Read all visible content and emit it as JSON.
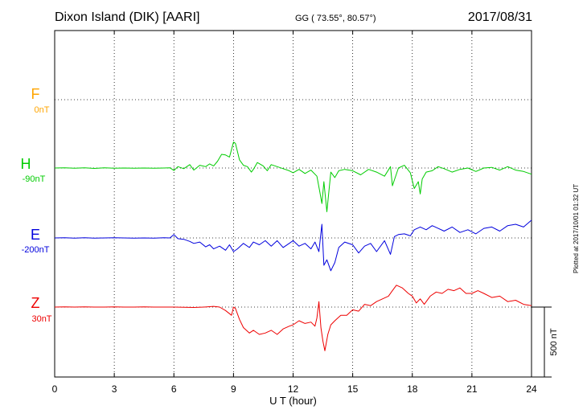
{
  "header": {
    "station": "Dixon Island (DIK)  [AARI]",
    "coords": "GG ( 73.55°,  80.57°)",
    "date": "2017/08/31"
  },
  "components": {
    "F": {
      "name": "F",
      "baseline": "0nT",
      "color": "#FFA500"
    },
    "H": {
      "name": "H",
      "baseline": "-90nT",
      "color": "#00CC00"
    },
    "E": {
      "name": "E",
      "baseline": "-200nT",
      "color": "#0000DD"
    },
    "Z": {
      "name": "Z",
      "baseline": "30nT",
      "color": "#EE0000"
    }
  },
  "plotted_note": "Plotted at 2017/10/01 01:32 UT",
  "chart_data": {
    "type": "line",
    "xlabel": "U T (hour)",
    "xlim": [
      0,
      24
    ],
    "x_ticks": [
      "0",
      "3",
      "6",
      "9",
      "12",
      "15",
      "18",
      "21",
      "24"
    ],
    "grid": true,
    "scale_bar": "500 nT",
    "series": [
      {
        "name": "H",
        "baseline": "-90nT",
        "color": "#00CC00",
        "x": [
          0,
          0.5,
          1,
          1.5,
          2,
          2.5,
          3,
          3.5,
          4,
          4.5,
          5,
          5.5,
          5.8,
          6,
          6.2,
          6.5,
          6.8,
          7,
          7.3,
          7.6,
          7.8,
          8,
          8.2,
          8.4,
          8.6,
          8.8,
          9,
          9.1,
          9.3,
          9.5,
          9.7,
          9.9,
          10,
          10.2,
          10.5,
          10.7,
          10.9,
          11.2,
          11.5,
          11.8,
          12,
          12.3,
          12.6,
          12.9,
          13.2,
          13.35,
          13.45,
          13.55,
          13.7,
          13.9,
          14.1,
          14.3,
          14.6,
          15,
          15.4,
          15.8,
          16.2,
          16.6,
          16.9,
          17,
          17.3,
          17.6,
          17.9,
          18.1,
          18.3,
          18.4,
          18.5,
          18.7,
          19,
          19.3,
          19.6,
          20,
          20.4,
          20.8,
          21.2,
          21.6,
          22,
          22.4,
          22.8,
          23.2,
          23.6,
          24
        ],
        "y": [
          0,
          2,
          -2,
          2,
          -3,
          2,
          -2,
          0,
          -2,
          0,
          -2,
          0,
          2,
          -18,
          10,
          -5,
          25,
          -15,
          20,
          10,
          30,
          15,
          50,
          100,
          95,
          80,
          190,
          180,
          60,
          20,
          10,
          -30,
          -10,
          40,
          15,
          -20,
          25,
          10,
          -5,
          -20,
          -35,
          -10,
          -40,
          -15,
          -60,
          -180,
          -260,
          -100,
          -320,
          -30,
          -70,
          -20,
          -10,
          -20,
          -50,
          -10,
          -30,
          -60,
          10,
          -130,
          0,
          20,
          -35,
          -150,
          -100,
          -190,
          -80,
          -30,
          -20,
          10,
          -5,
          -30,
          -10,
          0,
          -25,
          0,
          5,
          -15,
          10,
          -15,
          -25,
          -45
        ]
      },
      {
        "name": "E",
        "baseline": "-200nT",
        "color": "#0000DD",
        "x": [
          0,
          0.5,
          1,
          1.5,
          2,
          2.5,
          3,
          3.5,
          4,
          4.5,
          5,
          5.5,
          5.8,
          6,
          6.2,
          6.5,
          6.8,
          7,
          7.3,
          7.6,
          7.8,
          8,
          8.3,
          8.6,
          8.8,
          9,
          9.2,
          9.5,
          9.8,
          10,
          10.3,
          10.6,
          10.9,
          11.2,
          11.5,
          11.8,
          12,
          12.3,
          12.6,
          12.9,
          13.1,
          13.3,
          13.45,
          13.55,
          13.7,
          13.9,
          14.1,
          14.3,
          14.6,
          15,
          15.3,
          15.6,
          15.9,
          16.2,
          16.6,
          16.9,
          17.1,
          17.3,
          17.6,
          17.9,
          18.1,
          18.4,
          18.7,
          19,
          19.3,
          19.6,
          20,
          20.4,
          20.8,
          21.2,
          21.6,
          22,
          22.4,
          22.8,
          23.2,
          23.6,
          24
        ],
        "y": [
          0,
          2,
          -2,
          2,
          -2,
          0,
          2,
          0,
          -2,
          0,
          -2,
          2,
          0,
          25,
          -5,
          -10,
          -25,
          -40,
          -30,
          -65,
          -50,
          -80,
          -60,
          -90,
          -50,
          -100,
          -80,
          -40,
          -70,
          -30,
          -50,
          -20,
          -60,
          -20,
          -70,
          -40,
          -20,
          -60,
          -40,
          -80,
          -30,
          -100,
          100,
          -200,
          -160,
          -240,
          -180,
          -70,
          -30,
          -50,
          -110,
          -60,
          -40,
          -100,
          -20,
          -120,
          10,
          25,
          30,
          15,
          60,
          80,
          60,
          90,
          70,
          50,
          80,
          40,
          60,
          30,
          70,
          80,
          50,
          90,
          100,
          80,
          130
        ]
      },
      {
        "name": "Z",
        "baseline": "30nT",
        "color": "#EE0000",
        "x": [
          0,
          0.5,
          1,
          1.5,
          2,
          2.5,
          3,
          3.5,
          4,
          4.5,
          5,
          5.5,
          6,
          6.5,
          7,
          7.5,
          8,
          8.3,
          8.6,
          8.9,
          9,
          9.1,
          9.3,
          9.5,
          9.8,
          10,
          10.3,
          10.6,
          10.9,
          11.2,
          11.5,
          11.8,
          12,
          12.3,
          12.6,
          12.9,
          13.1,
          13.2,
          13.3,
          13.4,
          13.5,
          13.6,
          13.75,
          13.9,
          14.1,
          14.4,
          14.7,
          15,
          15.3,
          15.6,
          15.9,
          16.2,
          16.5,
          16.8,
          17,
          17.2,
          17.5,
          17.8,
          18,
          18.2,
          18.4,
          18.6,
          18.9,
          19.2,
          19.5,
          19.8,
          20.1,
          20.4,
          20.7,
          21,
          21.3,
          21.6,
          22,
          22.4,
          22.8,
          23.2,
          23.6,
          24
        ],
        "y": [
          0,
          1,
          0,
          1,
          0,
          0,
          1,
          0,
          0,
          1,
          0,
          0,
          0,
          -1,
          -3,
          0,
          5,
          0,
          -25,
          -60,
          0,
          -10,
          -90,
          -150,
          -190,
          -170,
          -200,
          -190,
          -170,
          -200,
          -160,
          -140,
          -130,
          -100,
          -120,
          -110,
          -140,
          -80,
          40,
          -150,
          -250,
          -320,
          -200,
          -130,
          -100,
          -60,
          -60,
          -20,
          -30,
          20,
          10,
          40,
          60,
          80,
          120,
          160,
          140,
          100,
          80,
          30,
          60,
          20,
          80,
          110,
          100,
          130,
          120,
          140,
          100,
          100,
          120,
          100,
          70,
          80,
          40,
          50,
          20,
          10
        ]
      }
    ]
  }
}
